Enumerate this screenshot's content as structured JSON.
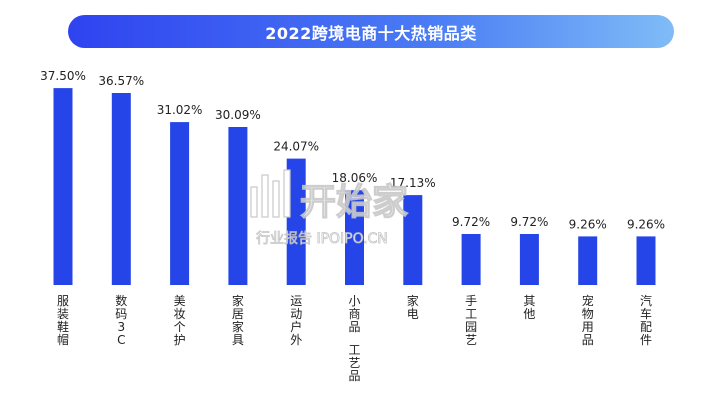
{
  "chart_data": {
    "type": "bar",
    "title": "2022跨境电商十大热销品类",
    "categories": [
      "服装鞋帽",
      "数码3C",
      "美妆个护",
      "家居家具",
      "运动户外",
      "小商品 工艺品",
      "家电",
      "手工园艺",
      "其他",
      "宠物用品",
      "汽车配件"
    ],
    "values": [
      37.5,
      36.57,
      31.02,
      30.09,
      24.07,
      18.06,
      17.13,
      9.72,
      9.72,
      9.26,
      9.26
    ],
    "value_labels": [
      "37.50%",
      "36.57%",
      "31.02%",
      "30.09%",
      "24.07%",
      "18.06%",
      "17.13%",
      "9.72%",
      "9.72%",
      "9.26%",
      "9.26%"
    ],
    "ylim": [
      0,
      40
    ],
    "xlabel": "",
    "ylabel": "",
    "grid": false,
    "legend": "none",
    "bar_color": "#2545e8"
  },
  "watermark": {
    "logo": "IPOIPO",
    "main_text": "开始家",
    "sub_text": "行业报告 IPOIPO.CN"
  }
}
